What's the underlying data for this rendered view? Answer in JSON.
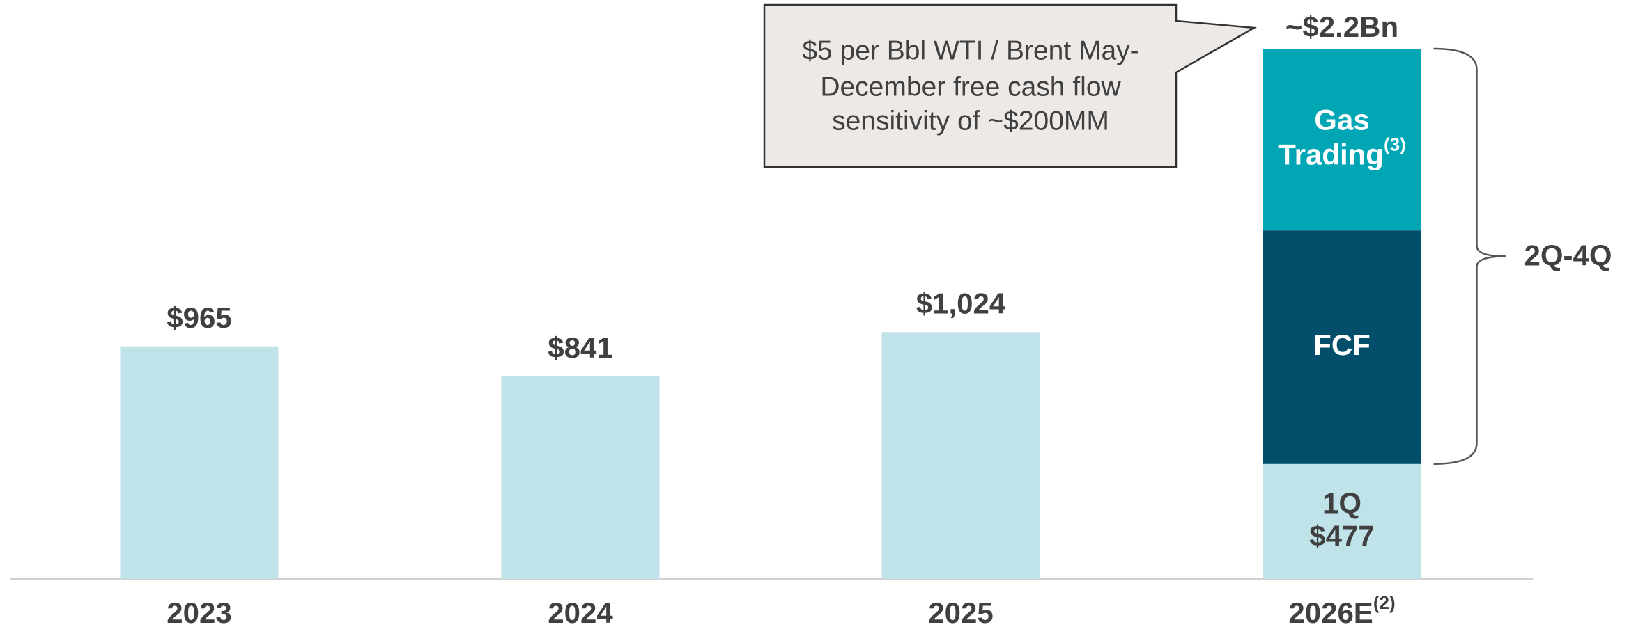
{
  "chart_data": {
    "type": "bar",
    "categories": [
      "2023",
      "2024",
      "2025",
      "2026E"
    ],
    "category_footnotes": [
      null,
      null,
      null,
      "(2)"
    ],
    "values": [
      965,
      841,
      1024,
      477
    ],
    "value_labels": [
      "$965",
      "$841",
      "$1,024",
      "$477"
    ],
    "color": "#c0e3ea",
    "ylim": [
      0,
      2200
    ],
    "stack": {
      "category_index": 3,
      "base_label": "1Q",
      "segments": [
        {
          "name": "FCF",
          "color": "#034e6a",
          "value": 969
        },
        {
          "name": "Gas Trading",
          "footnote": "(3)",
          "color": "#00a6b4",
          "value": 754
        }
      ],
      "total_label": "~$2.2Bn",
      "bracket_label": "2Q-4Q"
    },
    "callout": [
      "$5 per Bbl WTI / Brent May-",
      "December free cash flow",
      "sensitivity of ~$200MM"
    ]
  }
}
